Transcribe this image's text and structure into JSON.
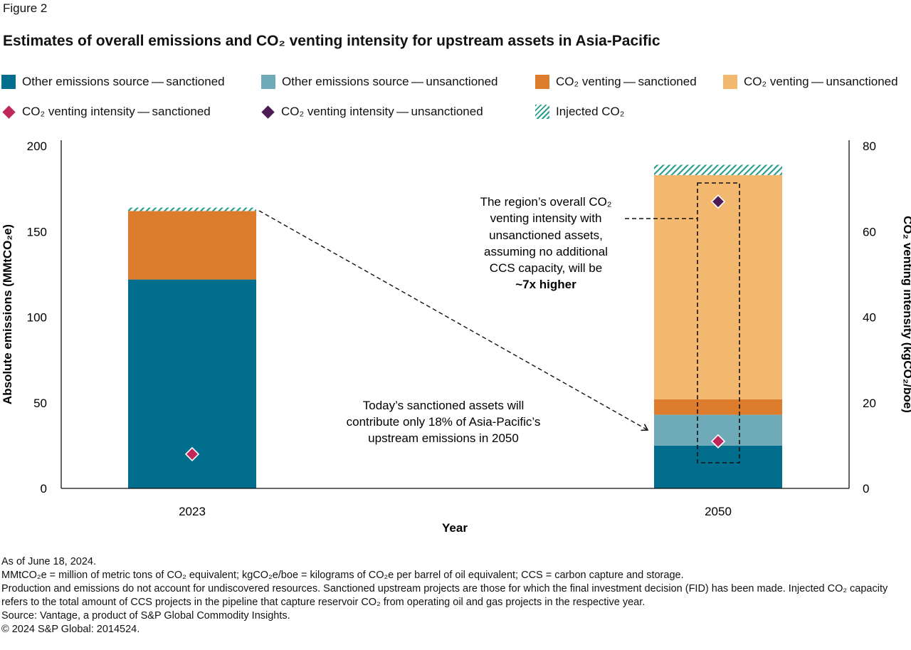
{
  "figure_label": "Figure 2",
  "title": "Estimates of overall emissions and CO₂ venting intensity for upstream assets in Asia-Pacific",
  "colors": {
    "other_sanctioned": "#006e8c",
    "other_unsanctioned": "#6eaab8",
    "venting_sanctioned": "#dd7c2c",
    "venting_unsanctioned": "#f3b86f",
    "intensity_sanctioned": "#c0285a",
    "intensity_unsanctioned": "#4d1c53",
    "injected": "#2a9d8f"
  },
  "legend": [
    {
      "label": "Other emissions source — sanctioned",
      "kind": "box",
      "color": "#006e8c"
    },
    {
      "label": "Other emissions source — unsanctioned",
      "kind": "box",
      "color": "#6eaab8"
    },
    {
      "label": "CO₂ venting — sanctioned",
      "kind": "box",
      "color": "#dd7c2c"
    },
    {
      "label": "CO₂ venting — unsanctioned",
      "kind": "box",
      "color": "#f3b86f"
    },
    {
      "label": "CO₂ venting intensity — sanctioned",
      "kind": "diamond",
      "color": "#c0285a"
    },
    {
      "label": "CO₂ venting intensity — unsanctioned",
      "kind": "diamond",
      "color": "#4d1c53"
    },
    {
      "label": "Injected CO₂",
      "kind": "hatch",
      "color": "#2a9d8f"
    }
  ],
  "chart_data": {
    "type": "bar",
    "stacked": true,
    "categories": [
      "2023",
      "2050"
    ],
    "xlabel": "Year",
    "ylabel": "Absolute emissions (MMtCO₂e)",
    "ylabel_right": "CO₂ venting intensity (kgCO₂/boe)",
    "ylim": [
      0,
      200
    ],
    "ylim_right": [
      0,
      80
    ],
    "yticks": [
      0,
      50,
      100,
      150,
      200
    ],
    "yticks_right": [
      0,
      20,
      40,
      60,
      80
    ],
    "series": [
      {
        "name": "Other emissions source — sanctioned",
        "values": [
          122,
          25
        ],
        "color": "#006e8c"
      },
      {
        "name": "Other emissions source — unsanctioned",
        "values": [
          0,
          18
        ],
        "color": "#6eaab8"
      },
      {
        "name": "CO₂ venting — sanctioned",
        "values": [
          40,
          9
        ],
        "color": "#dd7c2c"
      },
      {
        "name": "CO₂ venting — unsanctioned",
        "values": [
          0,
          131
        ],
        "color": "#f3b86f"
      },
      {
        "name": "Injected CO₂",
        "values": [
          2,
          6
        ],
        "color": "#2a9d8f",
        "pattern": "hatch"
      }
    ],
    "intensity_series": [
      {
        "name": "CO₂ venting intensity — sanctioned",
        "axis": "right",
        "values": [
          8,
          11
        ],
        "color": "#c0285a"
      },
      {
        "name": "CO₂ venting intensity — unsanctioned",
        "axis": "right",
        "values": [
          null,
          67
        ],
        "color": "#4d1c53"
      }
    ],
    "annotations": [
      {
        "lines": [
          "The region’s overall CO₂",
          "venting intensity with",
          "unsanctioned assets,",
          "assuming no additional",
          "CCS capacity, will be",
          "~7x higher"
        ],
        "bold_last": true
      },
      {
        "lines": [
          "Today’s sanctioned assets will",
          "contribute only 18% of Asia-Pacific’s",
          "upstream emissions in 2050"
        ]
      }
    ]
  },
  "footnotes": [
    "As of June 18, 2024.",
    "MMtCO₂e = million of metric tons of CO₂ equivalent; kgCO₂e/boe = kilograms of CO₂e per barrel of oil equivalent; CCS = carbon capture and storage.",
    "Production and emissions do not account for undiscovered resources. Sanctioned upstream projects are those for which the final investment decision (FID) has been made. Injected CO₂ capacity refers to the total amount of CCS projects in the pipeline that capture reservoir CO₂ from operating oil and gas projects in the respective year.",
    "Source: Vantage, a product of S&P Global Commodity Insights.",
    "© 2024 S&P Global: 2014524."
  ]
}
